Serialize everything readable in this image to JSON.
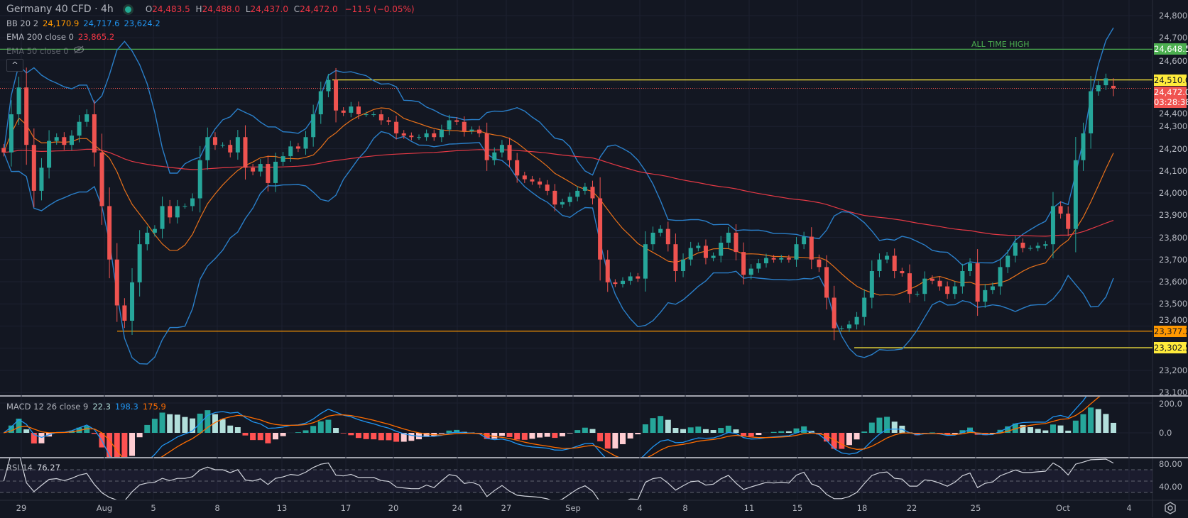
{
  "header": {
    "symbol_title": "Germany 40 CFD · 4h",
    "market_status": "open",
    "ohlc": {
      "o_label": "O",
      "o": "24,483.5",
      "h_label": "H",
      "h": "24,488.0",
      "l_label": "L",
      "l": "24,437.0",
      "c_label": "C",
      "c": "24,472.0",
      "change": "−11.5 (−0.05%)"
    }
  },
  "indicators": {
    "bb": {
      "label": "BB 20 2",
      "basis": "24,170.9",
      "upper": "24,717.6",
      "lower": "23,624.2"
    },
    "ema200": {
      "label": "EMA 200 close 0",
      "value": "23,865.2"
    },
    "ema50": {
      "label": "EMA 50 close 0",
      "hidden_icon": "eye-crossed-icon"
    },
    "macd": {
      "label": "MACD 12 26 close 9",
      "hist": "22.3",
      "macd": "198.3",
      "signal": "175.9"
    },
    "rsi": {
      "label": "RSI 14",
      "value": "76.27"
    }
  },
  "collapse_button": "^",
  "annotations": {
    "ath_text": "ALL TIME HIGH"
  },
  "price_axis": {
    "ticks": [
      "24,800.0",
      "24,700.0",
      "24,600.0",
      "24,400.0",
      "24,300.0",
      "24,200.0",
      "24,100.0",
      "24,000.0",
      "23,900.0",
      "23,800.0",
      "23,700.0",
      "23,600.0",
      "23,500.0",
      "23,400.0",
      "23,200.0",
      "23,100.0"
    ],
    "macd_ticks": [
      "200.0",
      "0.0"
    ],
    "rsi_ticks": [
      "80.00",
      "40.00"
    ]
  },
  "price_labels": [
    {
      "text": "24,648.5",
      "value": 24648.5,
      "bg": "#4caf50",
      "fg": "#ffffff"
    },
    {
      "text": "24,510.0",
      "value": 24510.0,
      "bg": "#ffeb3b",
      "fg": "#131722"
    },
    {
      "text": "24,472.0",
      "value": 24472.0,
      "bg": "#f05350",
      "fg": "#ffffff",
      "sub": "03:28:38"
    },
    {
      "text": "23,377.2",
      "value": 23377.2,
      "bg": "#ff9800",
      "fg": "#131722"
    },
    {
      "text": "23,302.5",
      "value": 23302.5,
      "bg": "#ffeb3b",
      "fg": "#131722"
    }
  ],
  "time_axis": [
    "29",
    "Aug",
    "5",
    "8",
    "13",
    "17",
    "20",
    "24",
    "27",
    "Sep",
    "4",
    "8",
    "11",
    "15",
    "18",
    "22",
    "25",
    "Oct",
    "4"
  ],
  "colors": {
    "up": "#26a69a",
    "down": "#ef5350",
    "bb": "#2a7fc9",
    "bb_basis": "#e8711a",
    "ema200": "#e53945",
    "macd": "#2196f3",
    "signal": "#ff6d00",
    "ath": "#4caf50",
    "level_yellow": "#ffeb3b",
    "level_orange": "#ff9800",
    "rsi": "#d1d4dc"
  },
  "chart_data": {
    "type": "candlestick",
    "ylim": [
      23100,
      24800
    ],
    "hlines": [
      {
        "value": 24648.5,
        "color": "#4caf50",
        "label": "ALL TIME HIGH"
      },
      {
        "value": 24510.0,
        "color": "#ffeb3b"
      },
      {
        "value": 24472.0,
        "color": "#f05350",
        "style": "dotted"
      },
      {
        "value": 23377.2,
        "color": "#ff9800"
      },
      {
        "value": 23302.5,
        "color": "#ffeb3b"
      }
    ],
    "closes": [
      24183,
      24355,
      24476,
      24217,
      24010,
      24114,
      24235,
      24252,
      24217,
      24259,
      24321,
      24355,
      24183,
      23941,
      23700,
      23493,
      23424,
      23597,
      23769,
      23821,
      23838,
      23941,
      23890,
      23941,
      23941,
      23976,
      24148,
      24252,
      24217,
      24217,
      24183,
      24252,
      24114,
      24097,
      24131,
      24045,
      24141,
      24166,
      24210,
      24200,
      24252,
      24355,
      24459,
      24510,
      24372,
      24362,
      24390,
      24355,
      24355,
      24355,
      24328,
      24321,
      24269,
      24259,
      24252,
      24252,
      24269,
      24252,
      24286,
      24328,
      24321,
      24279,
      24286,
      24269,
      24148,
      24183,
      24217,
      24148,
      24079,
      24062,
      24052,
      24038,
      24010,
      23948,
      23959,
      23983,
      24010,
      24028,
      23976,
      23700,
      23597,
      23590,
      23604,
      23624,
      23614,
      23769,
      23821,
      23838,
      23769,
      23648,
      23700,
      23752,
      23762,
      23707,
      23717,
      23776,
      23821,
      23734,
      23631,
      23659,
      23683,
      23707,
      23700,
      23707,
      23700,
      23769,
      23803,
      23700,
      23666,
      23528,
      23390,
      23390,
      23407,
      23441,
      23528,
      23648,
      23700,
      23717,
      23648,
      23638,
      23545,
      23545,
      23614,
      23604,
      23579,
      23545,
      23579,
      23648,
      23683,
      23510,
      23562,
      23579,
      23666,
      23717,
      23776,
      23752,
      23752,
      23762,
      23769,
      23941,
      23907,
      23838,
      24148,
      24269,
      24459,
      24486,
      24517,
      24472
    ],
    "last": {
      "open": 24483.5,
      "high": 24488.0,
      "low": 24437.0,
      "close": 24472.0
    }
  }
}
